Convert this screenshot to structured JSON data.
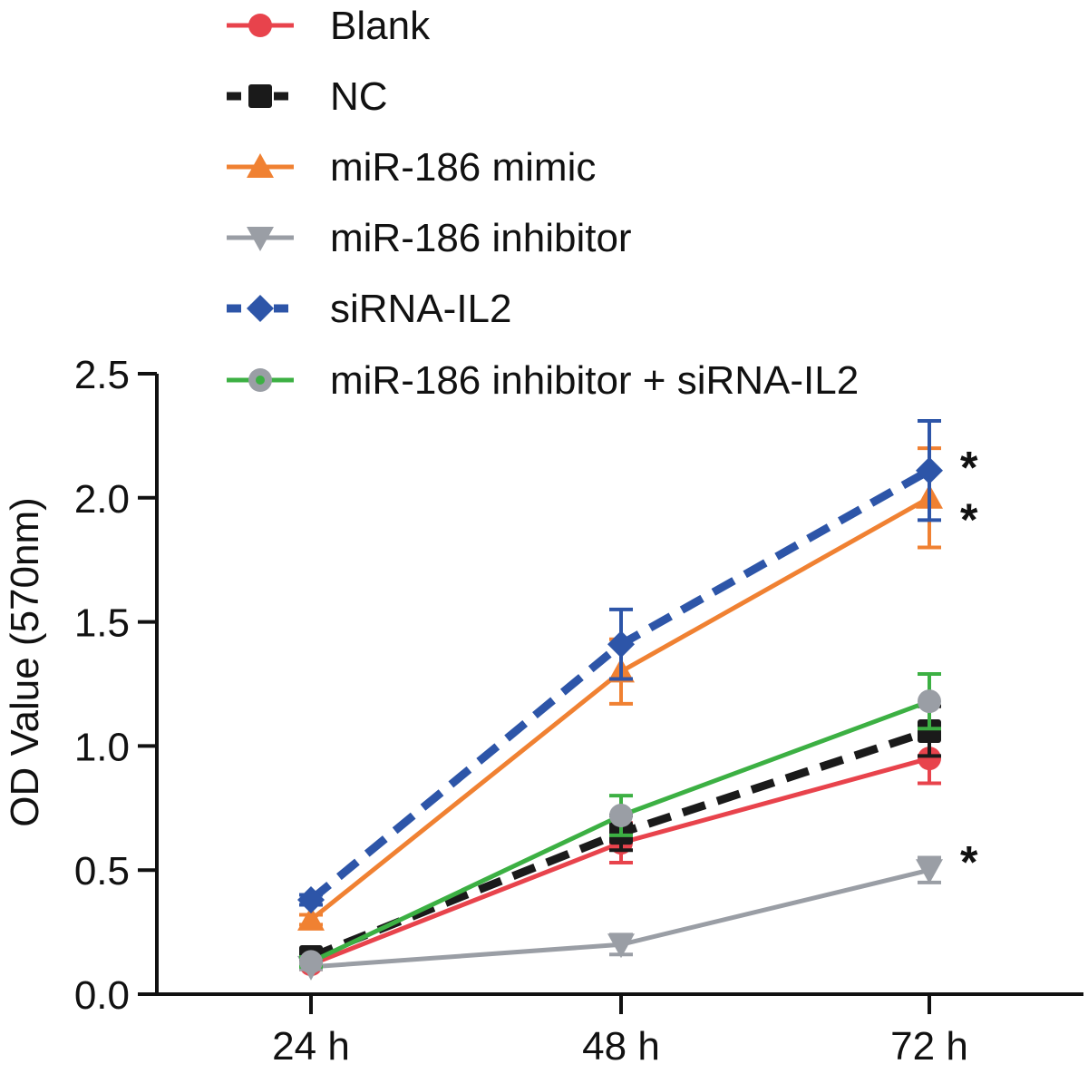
{
  "chart_data": {
    "type": "line",
    "title": "",
    "xlabel": "",
    "ylabel": "OD Value (570nm)",
    "categories": [
      "24 h",
      "48 h",
      "72 h"
    ],
    "ylim": [
      0,
      2.5
    ],
    "yticks": [
      "0.0",
      "0.5",
      "1.0",
      "1.5",
      "2.0",
      "2.5"
    ],
    "ytick_values": [
      0,
      0.5,
      1.0,
      1.5,
      2.0,
      2.5
    ],
    "grid": false,
    "legend_position": "top",
    "series": [
      {
        "name": "Blank",
        "color": "#e8434c",
        "marker": "circle",
        "dash": "solid",
        "values": [
          0.12,
          0.61,
          0.95
        ],
        "errors": [
          0.02,
          0.08,
          0.1
        ]
      },
      {
        "name": "NC",
        "color": "#1a1a1a",
        "marker": "square",
        "dash": "dashed",
        "values": [
          0.15,
          0.65,
          1.06
        ],
        "errors": [
          0.02,
          0.07,
          0.1
        ]
      },
      {
        "name": "miR-186 mimic",
        "color": "#f08132",
        "marker": "triangle-up",
        "dash": "solid",
        "values": [
          0.3,
          1.3,
          2.0
        ],
        "errors": [
          0.02,
          0.13,
          0.2
        ]
      },
      {
        "name": "miR-186 inhibitor",
        "color": "#9a9ea5",
        "marker": "triangle-down",
        "dash": "solid",
        "values": [
          0.11,
          0.2,
          0.5
        ],
        "errors": [
          0.01,
          0.04,
          0.05
        ]
      },
      {
        "name": "siRNA-IL2",
        "color": "#2d55a8",
        "marker": "diamond",
        "dash": "dashed",
        "values": [
          0.38,
          1.41,
          2.11
        ],
        "errors": [
          0.02,
          0.14,
          0.2
        ]
      },
      {
        "name": "miR-186 inhibitor + siRNA-IL2",
        "color": "#3cb043",
        "marker": "circle-gray",
        "marker_color": "#9a9ea5",
        "dash": "solid",
        "values": [
          0.13,
          0.72,
          1.18
        ],
        "errors": [
          0.02,
          0.08,
          0.11
        ]
      }
    ],
    "annotations": [
      {
        "text": "*",
        "category": "72 h",
        "y": 2.14
      },
      {
        "text": "*",
        "category": "72 h",
        "y": 1.93
      },
      {
        "text": "*",
        "category": "72 h",
        "y": 0.55
      }
    ]
  }
}
